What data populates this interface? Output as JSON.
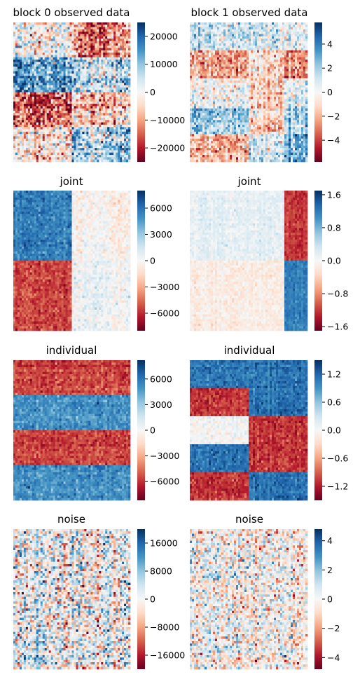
{
  "figure": {
    "rows": 4,
    "cols": 2,
    "colormap": "RdBu",
    "low_color": "#67001f",
    "mid_color": "#f7f7f7",
    "high_color": "#053061"
  },
  "chart_data": [
    {
      "type": "heatmap",
      "title": "block 0 observed data",
      "row": 0,
      "col": 0,
      "vmin": -25000,
      "vmax": 25000,
      "colorbar_ticks": [
        20000,
        10000,
        0,
        -10000,
        -20000
      ],
      "colorbar_ticklabels": [
        "20000",
        "10000",
        "0",
        "−10000",
        "−20000"
      ],
      "pattern": {
        "row_bands": [
          0.25,
          0.25,
          0.25,
          0.25
        ],
        "col_split": 0.5,
        "means": [
          [
            0,
            -12000
          ],
          [
            15000,
            6000
          ],
          [
            -15000,
            -6000
          ],
          [
            -3000,
            8000
          ]
        ],
        "noise": 9000
      }
    },
    {
      "type": "heatmap",
      "title": "block 1 observed data",
      "row": 0,
      "col": 1,
      "vmin": -5.8,
      "vmax": 5.8,
      "colorbar_ticks": [
        4,
        2,
        0,
        -2,
        -4
      ],
      "colorbar_ticklabels": [
        "4",
        "2",
        "0",
        "−2",
        "−4"
      ],
      "pattern": {
        "row_bands": [
          0.2,
          0.2,
          0.2,
          0.2,
          0.2
        ],
        "col_splits": [
          0.5,
          0.8
        ],
        "means": [
          [
            1.2,
            1.2,
            0.3
          ],
          [
            -2.5,
            -0.8,
            -3.0
          ],
          [
            0.0,
            -1.2,
            0.4
          ],
          [
            2.0,
            -1.0,
            1.8
          ],
          [
            -2.0,
            1.2,
            2.8
          ]
        ],
        "noise": 1.4
      }
    },
    {
      "type": "heatmap",
      "title": "joint",
      "row": 1,
      "col": 0,
      "vmin": -8000,
      "vmax": 8000,
      "colorbar_ticks": [
        6000,
        3000,
        0,
        -3000,
        -6000
      ],
      "colorbar_ticklabels": [
        "6000",
        "3000",
        "0",
        "−3000",
        "−6000"
      ],
      "pattern": {
        "row_bands": [
          0.5,
          0.5
        ],
        "col_split": 0.5,
        "means": [
          [
            5500,
            -300
          ],
          [
            -5500,
            300
          ]
        ],
        "noise": 900
      }
    },
    {
      "type": "heatmap",
      "title": "joint",
      "row": 1,
      "col": 1,
      "vmin": -1.7,
      "vmax": 1.7,
      "colorbar_ticks": [
        1.6,
        0.8,
        0.0,
        -0.8,
        -1.6
      ],
      "colorbar_ticklabels": [
        "1.6",
        "0.8",
        "0.0",
        "−0.8",
        "−1.6"
      ],
      "pattern": {
        "row_bands": [
          0.5,
          0.5
        ],
        "col_split": 0.8,
        "means": [
          [
            0.15,
            -1.2
          ],
          [
            -0.15,
            1.2
          ]
        ],
        "noise": 0.12
      }
    },
    {
      "type": "heatmap",
      "title": "individual",
      "row": 2,
      "col": 0,
      "vmin": -8200,
      "vmax": 8200,
      "colorbar_ticks": [
        6000,
        3000,
        0,
        -3000,
        -6000
      ],
      "colorbar_ticklabels": [
        "6000",
        "3000",
        "0",
        "−3000",
        "−6000"
      ],
      "pattern": {
        "row_bands": [
          0.25,
          0.25,
          0.25,
          0.25
        ],
        "col_split": 1.0,
        "means": [
          [
            -5500
          ],
          [
            5000
          ],
          [
            -5500
          ],
          [
            5000
          ]
        ],
        "noise": 900
      }
    },
    {
      "type": "heatmap",
      "title": "individual",
      "row": 2,
      "col": 1,
      "vmin": -1.5,
      "vmax": 1.5,
      "colorbar_ticks": [
        1.2,
        0.6,
        0.0,
        -0.6,
        -1.2
      ],
      "colorbar_ticklabels": [
        "1.2",
        "0.6",
        "0.0",
        "−0.6",
        "−1.2"
      ],
      "pattern": {
        "row_bands": [
          0.2,
          0.2,
          0.2,
          0.2,
          0.2
        ],
        "col_split": 0.5,
        "means": [
          [
            1.1,
            1.1
          ],
          [
            -1.1,
            1.1
          ],
          [
            0.0,
            -1.1
          ],
          [
            1.1,
            -1.1
          ],
          [
            -1.1,
            1.1
          ]
        ],
        "noise": 0.15
      }
    },
    {
      "type": "heatmap",
      "title": "noise",
      "row": 3,
      "col": 0,
      "vmin": -20000,
      "vmax": 20000,
      "colorbar_ticks": [
        16000,
        8000,
        0,
        -8000,
        -16000
      ],
      "colorbar_ticklabels": [
        "16000",
        "8000",
        "0",
        "−8000",
        "−16000"
      ],
      "pattern": {
        "row_bands": [
          1.0
        ],
        "col_split": 1.0,
        "means": [
          [
            0
          ]
        ],
        "noise": 8000
      }
    },
    {
      "type": "heatmap",
      "title": "noise",
      "row": 3,
      "col": 1,
      "vmin": -4.8,
      "vmax": 4.8,
      "colorbar_ticks": [
        4,
        2,
        0,
        -2,
        -4
      ],
      "colorbar_ticklabels": [
        "4",
        "2",
        "0",
        "−2",
        "−4"
      ],
      "pattern": {
        "row_bands": [
          1.0
        ],
        "col_split": 1.0,
        "means": [
          [
            0
          ]
        ],
        "noise": 1.6
      }
    }
  ]
}
